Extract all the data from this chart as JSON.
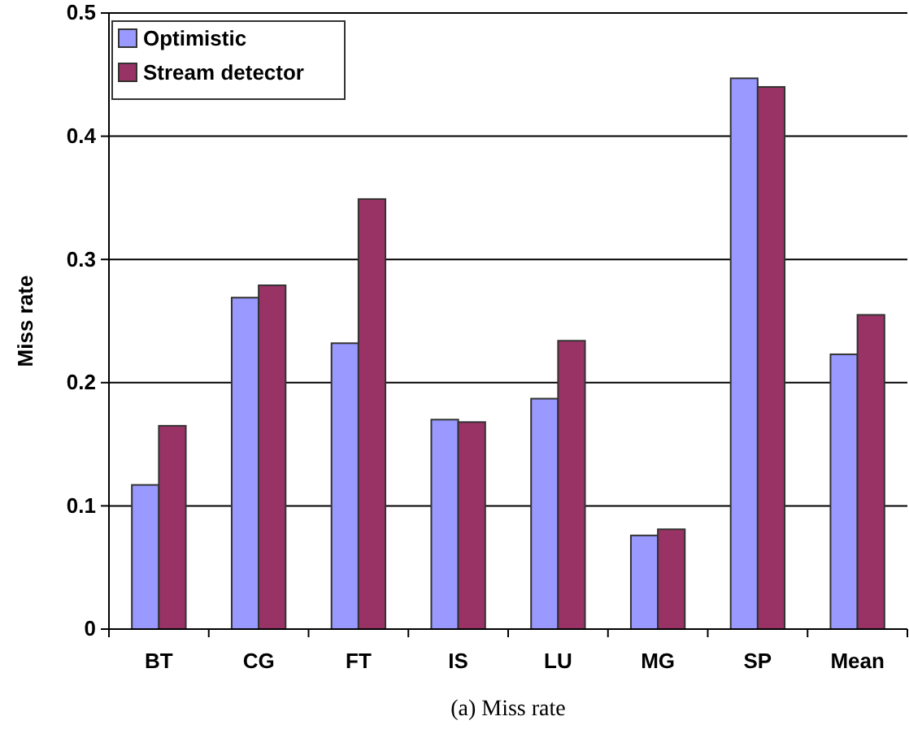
{
  "chart_data": {
    "type": "bar",
    "ylabel": "Miss rate",
    "annotations": [
      "(a) Miss rate"
    ],
    "categories": [
      "BT",
      "CG",
      "FT",
      "IS",
      "LU",
      "MG",
      "SP",
      "Mean"
    ],
    "series": [
      {
        "name": "Optimistic",
        "color": "#9999ff",
        "values": [
          0.117,
          0.269,
          0.232,
          0.17,
          0.187,
          0.076,
          0.447,
          0.223
        ]
      },
      {
        "name": "Stream detector",
        "color": "#993366",
        "values": [
          0.165,
          0.279,
          0.349,
          0.168,
          0.234,
          0.081,
          0.44,
          0.255
        ]
      }
    ],
    "ylim": [
      0,
      0.5
    ],
    "yticks": [
      0,
      0.1,
      0.2,
      0.3,
      0.4,
      0.5
    ],
    "grid": "y",
    "legend": "top left"
  }
}
